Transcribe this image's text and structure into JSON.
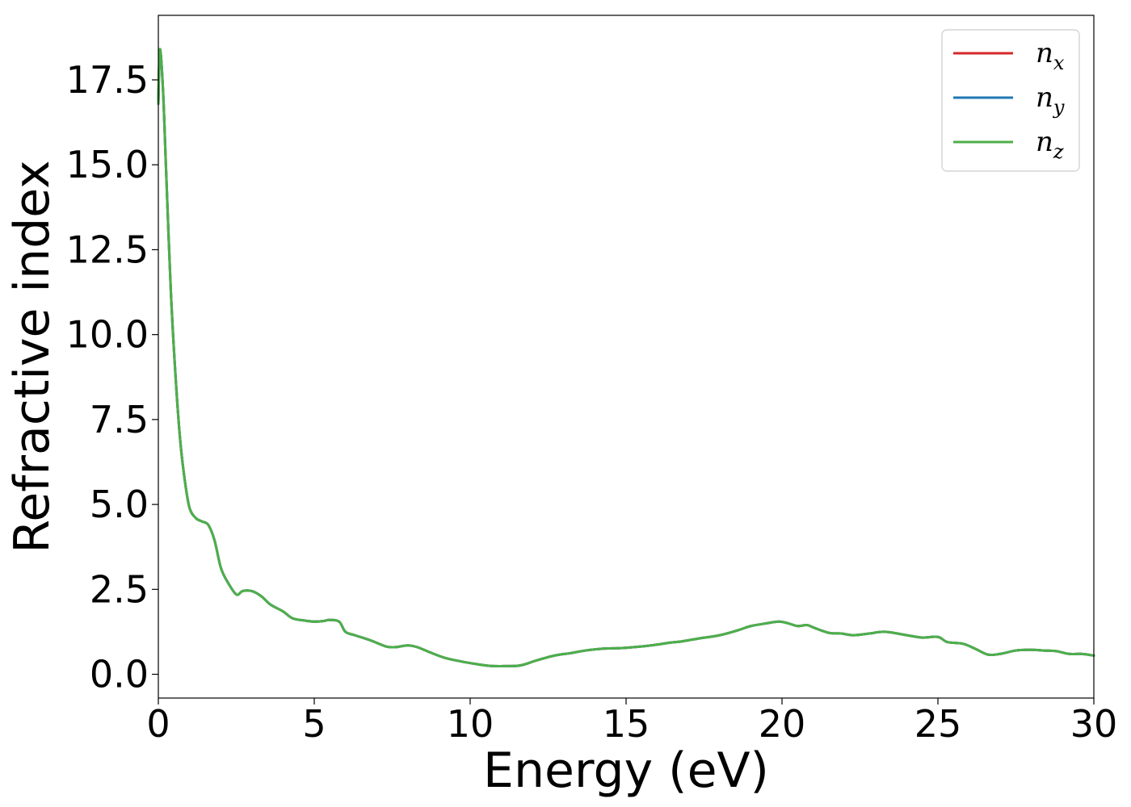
{
  "chart_data": {
    "type": "line",
    "xlabel": "Energy (eV)",
    "ylabel": "Refractive index",
    "xlim": [
      0,
      30
    ],
    "ylim": [
      -0.7,
      19.4
    ],
    "xticks": [
      0,
      5,
      10,
      15,
      20,
      25,
      30
    ],
    "xtick_labels": [
      "0",
      "5",
      "10",
      "15",
      "20",
      "25",
      "30"
    ],
    "yticks": [
      0.0,
      2.5,
      5.0,
      7.5,
      10.0,
      12.5,
      15.0,
      17.5
    ],
    "ytick_labels": [
      "0.0",
      "2.5",
      "5.0",
      "7.5",
      "10.0",
      "12.5",
      "15.0",
      "17.5"
    ],
    "grid": false,
    "legend_position": "top-right",
    "x": [
      0,
      0.05,
      0.15,
      0.25,
      0.4,
      0.55,
      0.7,
      0.85,
      1.0,
      1.2,
      1.4,
      1.6,
      1.8,
      2.0,
      2.2,
      2.5,
      2.7,
      3.0,
      3.3,
      3.6,
      4.0,
      4.3,
      4.7,
      5.0,
      5.3,
      5.5,
      5.8,
      6.0,
      6.3,
      6.8,
      7.3,
      7.6,
      8.0,
      8.3,
      8.7,
      9.2,
      9.7,
      10.2,
      10.6,
      11.0,
      11.6,
      12.1,
      12.7,
      13.2,
      13.7,
      14.2,
      15.0,
      15.8,
      16.4,
      16.8,
      17.3,
      18.0,
      18.6,
      19.0,
      19.5,
      19.9,
      20.2,
      20.5,
      20.8,
      21.0,
      21.5,
      21.9,
      22.3,
      22.8,
      23.3,
      24.0,
      24.5,
      25.0,
      25.3,
      25.8,
      26.2,
      26.6,
      27.0,
      27.5,
      28.0,
      28.4,
      28.8,
      29.2,
      29.6,
      30.0
    ],
    "series": [
      {
        "name": "n_x",
        "color": "#d62728",
        "values": [
          16.8,
          18.4,
          17.2,
          14.8,
          11.3,
          8.8,
          6.9,
          5.7,
          4.9,
          4.6,
          4.5,
          4.4,
          3.95,
          3.15,
          2.75,
          2.35,
          2.45,
          2.45,
          2.3,
          2.05,
          1.85,
          1.65,
          1.58,
          1.55,
          1.57,
          1.6,
          1.55,
          1.25,
          1.15,
          1.0,
          0.82,
          0.8,
          0.85,
          0.8,
          0.65,
          0.48,
          0.38,
          0.3,
          0.25,
          0.24,
          0.26,
          0.4,
          0.55,
          0.62,
          0.7,
          0.75,
          0.78,
          0.85,
          0.93,
          0.97,
          1.05,
          1.15,
          1.3,
          1.42,
          1.5,
          1.55,
          1.5,
          1.42,
          1.45,
          1.38,
          1.22,
          1.2,
          1.15,
          1.2,
          1.25,
          1.15,
          1.08,
          1.1,
          0.95,
          0.9,
          0.75,
          0.58,
          0.6,
          0.7,
          0.72,
          0.7,
          0.68,
          0.6,
          0.6,
          0.55
        ]
      },
      {
        "name": "n_y",
        "color": "#1f77b4",
        "values": [
          16.8,
          18.4,
          17.2,
          14.8,
          11.3,
          8.8,
          6.9,
          5.7,
          4.9,
          4.6,
          4.5,
          4.4,
          3.95,
          3.15,
          2.75,
          2.35,
          2.45,
          2.45,
          2.3,
          2.05,
          1.85,
          1.65,
          1.58,
          1.55,
          1.57,
          1.6,
          1.55,
          1.25,
          1.15,
          1.0,
          0.82,
          0.8,
          0.85,
          0.8,
          0.65,
          0.48,
          0.38,
          0.3,
          0.25,
          0.24,
          0.26,
          0.4,
          0.55,
          0.62,
          0.7,
          0.75,
          0.78,
          0.85,
          0.93,
          0.97,
          1.05,
          1.15,
          1.3,
          1.42,
          1.5,
          1.55,
          1.5,
          1.42,
          1.45,
          1.38,
          1.22,
          1.2,
          1.15,
          1.2,
          1.25,
          1.15,
          1.08,
          1.1,
          0.95,
          0.9,
          0.75,
          0.58,
          0.6,
          0.7,
          0.72,
          0.7,
          0.68,
          0.6,
          0.6,
          0.55
        ]
      },
      {
        "name": "n_z",
        "color": "#4daf4a",
        "values": [
          16.8,
          18.4,
          17.2,
          14.8,
          11.3,
          8.8,
          6.9,
          5.7,
          4.9,
          4.6,
          4.5,
          4.4,
          3.95,
          3.15,
          2.75,
          2.35,
          2.45,
          2.45,
          2.3,
          2.05,
          1.85,
          1.65,
          1.58,
          1.55,
          1.57,
          1.6,
          1.55,
          1.25,
          1.15,
          1.0,
          0.82,
          0.8,
          0.85,
          0.8,
          0.65,
          0.48,
          0.38,
          0.3,
          0.25,
          0.24,
          0.26,
          0.4,
          0.55,
          0.62,
          0.7,
          0.75,
          0.78,
          0.85,
          0.93,
          0.97,
          1.05,
          1.15,
          1.3,
          1.42,
          1.5,
          1.55,
          1.5,
          1.42,
          1.45,
          1.38,
          1.22,
          1.2,
          1.15,
          1.2,
          1.25,
          1.15,
          1.08,
          1.1,
          0.95,
          0.9,
          0.75,
          0.58,
          0.6,
          0.7,
          0.72,
          0.7,
          0.68,
          0.6,
          0.6,
          0.55
        ]
      }
    ],
    "legend": [
      {
        "base": "n",
        "sub": "x",
        "color": "#d62728"
      },
      {
        "base": "n",
        "sub": "y",
        "color": "#1f77b4"
      },
      {
        "base": "n",
        "sub": "z",
        "color": "#4daf4a"
      }
    ]
  }
}
